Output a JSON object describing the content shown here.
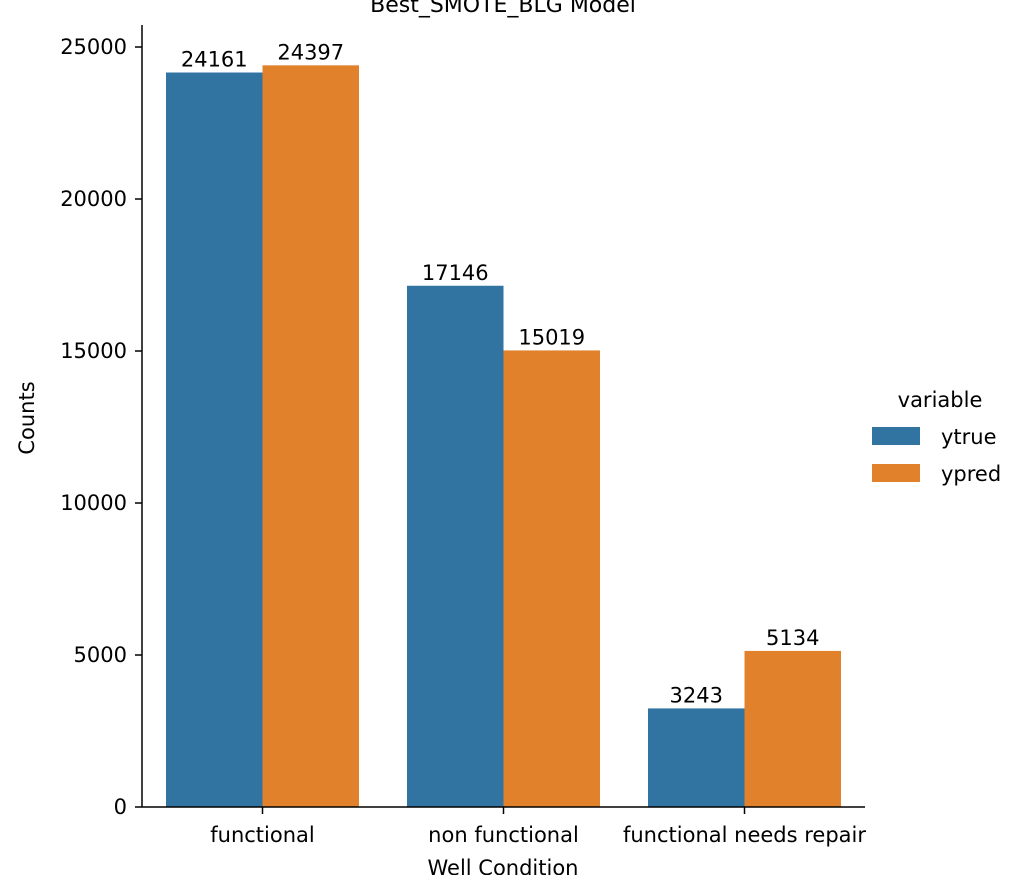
{
  "chart_data": {
    "type": "bar",
    "title": "Best_SMOTE_BLG Model",
    "xlabel": "Well Condition",
    "ylabel": "Counts",
    "categories": [
      "functional",
      "non functional",
      "functional needs repair"
    ],
    "series": [
      {
        "name": "ytrue",
        "values": [
          24161,
          17146,
          3243
        ],
        "color": "#3274a1"
      },
      {
        "name": "ypred",
        "values": [
          24397,
          15019,
          5134
        ],
        "color": "#e1812c"
      }
    ],
    "ylim": [
      0,
      25600
    ],
    "yticks": [
      0,
      5000,
      10000,
      15000,
      20000,
      25000
    ],
    "grid": false,
    "legend": {
      "title": "variable",
      "position": "right"
    }
  }
}
